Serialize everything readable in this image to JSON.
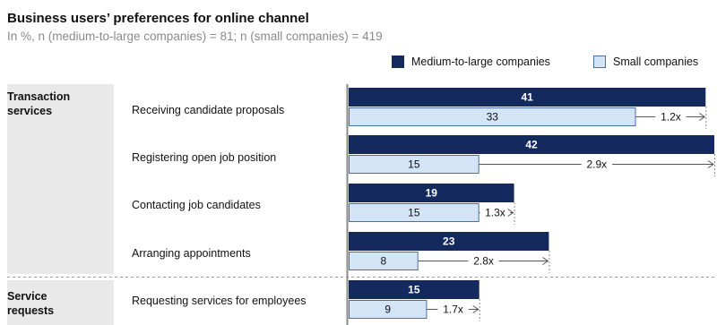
{
  "chart_data": {
    "type": "bar",
    "orientation": "horizontal",
    "title": "Business users’ preferences for online channel",
    "subtitle": "In %, n (medium-to-large companies) = 81; n (small companies) = 419",
    "xlim": [
      0,
      42
    ],
    "legend": {
      "placement": "top-right",
      "entries": [
        "Medium-to-large companies",
        "Small companies"
      ]
    },
    "colors": {
      "Medium-to-large companies": "#14295e",
      "Small companies": "#d2e4f6"
    },
    "groups": [
      {
        "label": "Transaction services",
        "label_lines": [
          "Transaction",
          "services"
        ],
        "categories": [
          0,
          1,
          2,
          3
        ]
      },
      {
        "label": "Service requests",
        "label_lines": [
          "Service",
          "requests"
        ],
        "categories": [
          4
        ]
      }
    ],
    "categories": [
      "Receiving candidate proposals",
      "Registering open job position",
      "Contacting job candidates",
      "Arranging appointments",
      "Requesting services for employees"
    ],
    "series": [
      {
        "name": "Medium-to-large companies",
        "values": [
          41,
          42,
          19,
          23,
          15
        ]
      },
      {
        "name": "Small companies",
        "values": [
          33,
          15,
          15,
          8,
          9
        ]
      }
    ],
    "ratio_labels": [
      "1.2x",
      "2.9x",
      "1.3x",
      "2.8x",
      "1.7x"
    ]
  }
}
